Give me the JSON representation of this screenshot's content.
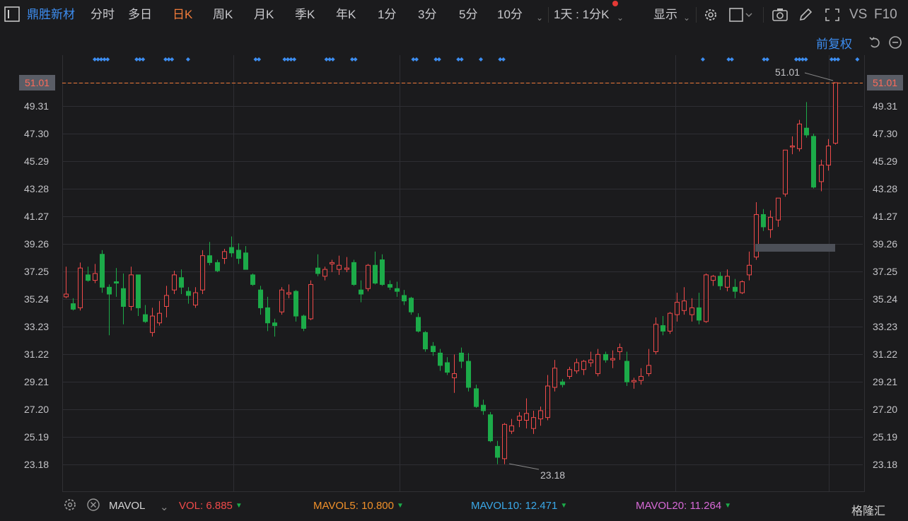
{
  "toolbar": {
    "stock_name": "鼎胜新材",
    "tabs": [
      "分时",
      "多日",
      "日K",
      "周K",
      "月K",
      "季K",
      "年K",
      "1分",
      "3分",
      "5分",
      "10分"
    ],
    "active_tab": "日K",
    "period_select": "1天 : 1分K",
    "display_label": "显示",
    "vs_label": "VS",
    "f10_label": "F10"
  },
  "chart_controls": {
    "adjust_label": "前复权"
  },
  "price_axis": {
    "ticks": [
      "51.01",
      "49.31",
      "47.30",
      "45.29",
      "43.28",
      "41.27",
      "39.26",
      "37.25",
      "35.24",
      "33.23",
      "31.22",
      "29.21",
      "27.20",
      "25.19",
      "23.18"
    ],
    "current_price": "51.01",
    "high_label": "51.01",
    "low_label": "23.18"
  },
  "colors": {
    "up": "#f04a4a",
    "down": "#1cab49",
    "marker": "#3d8df0",
    "guide": "#f07b3a",
    "grid": "#2e2e33"
  },
  "chart_data": {
    "type": "candlestick",
    "ylim": [
      22.4,
      52.3
    ],
    "candles": [
      {
        "o": 35.4,
        "h": 37.6,
        "l": 35.3,
        "c": 35.6
      },
      {
        "o": 34.9,
        "h": 35.3,
        "l": 34.4,
        "c": 34.5
      },
      {
        "o": 34.6,
        "h": 37.9,
        "l": 34.4,
        "c": 37.5
      },
      {
        "o": 37.0,
        "h": 37.6,
        "l": 36.5,
        "c": 36.6
      },
      {
        "o": 36.6,
        "h": 37.8,
        "l": 36.4,
        "c": 37.1
      },
      {
        "o": 38.5,
        "h": 38.8,
        "l": 35.7,
        "c": 36.1
      },
      {
        "o": 36.1,
        "h": 36.3,
        "l": 32.6,
        "c": 35.6
      },
      {
        "o": 36.5,
        "h": 37.5,
        "l": 35.4,
        "c": 36.4
      },
      {
        "o": 36.0,
        "h": 37.1,
        "l": 33.4,
        "c": 34.7
      },
      {
        "o": 34.7,
        "h": 37.6,
        "l": 34.4,
        "c": 37.0
      },
      {
        "o": 37.0,
        "h": 37.0,
        "l": 34.0,
        "c": 34.6
      },
      {
        "o": 34.1,
        "h": 34.8,
        "l": 33.5,
        "c": 33.6
      },
      {
        "o": 32.8,
        "h": 34.6,
        "l": 32.5,
        "c": 34.0
      },
      {
        "o": 33.5,
        "h": 35.1,
        "l": 33.3,
        "c": 34.2
      },
      {
        "o": 34.7,
        "h": 36.2,
        "l": 33.9,
        "c": 35.5
      },
      {
        "o": 35.9,
        "h": 37.3,
        "l": 35.6,
        "c": 37.0
      },
      {
        "o": 36.8,
        "h": 37.4,
        "l": 35.6,
        "c": 36.1
      },
      {
        "o": 35.8,
        "h": 36.1,
        "l": 34.9,
        "c": 35.5
      },
      {
        "o": 34.8,
        "h": 36.1,
        "l": 34.6,
        "c": 35.7
      },
      {
        "o": 35.9,
        "h": 38.8,
        "l": 35.6,
        "c": 38.4
      },
      {
        "o": 38.4,
        "h": 39.4,
        "l": 37.7,
        "c": 37.9
      },
      {
        "o": 37.9,
        "h": 38.1,
        "l": 37.2,
        "c": 37.3
      },
      {
        "o": 38.2,
        "h": 38.9,
        "l": 37.8,
        "c": 38.7
      },
      {
        "o": 39.0,
        "h": 39.8,
        "l": 38.3,
        "c": 38.6
      },
      {
        "o": 38.8,
        "h": 39.3,
        "l": 37.8,
        "c": 38.2
      },
      {
        "o": 38.6,
        "h": 39.1,
        "l": 37.4,
        "c": 37.4
      },
      {
        "o": 37.0,
        "h": 37.1,
        "l": 36.2,
        "c": 36.3
      },
      {
        "o": 35.9,
        "h": 36.2,
        "l": 34.1,
        "c": 34.6
      },
      {
        "o": 34.6,
        "h": 35.4,
        "l": 32.9,
        "c": 33.5
      },
      {
        "o": 33.5,
        "h": 33.8,
        "l": 32.5,
        "c": 33.3
      },
      {
        "o": 34.3,
        "h": 36.1,
        "l": 34.1,
        "c": 35.9
      },
      {
        "o": 35.6,
        "h": 36.3,
        "l": 35.3,
        "c": 35.7
      },
      {
        "o": 35.8,
        "h": 35.9,
        "l": 33.6,
        "c": 34.0
      },
      {
        "o": 34.0,
        "h": 34.1,
        "l": 32.9,
        "c": 33.1
      },
      {
        "o": 33.8,
        "h": 36.6,
        "l": 33.7,
        "c": 36.3
      },
      {
        "o": 37.5,
        "h": 38.5,
        "l": 36.9,
        "c": 37.1
      },
      {
        "o": 36.9,
        "h": 37.6,
        "l": 36.6,
        "c": 37.4
      },
      {
        "o": 37.8,
        "h": 38.1,
        "l": 37.2,
        "c": 37.9
      },
      {
        "o": 37.4,
        "h": 38.4,
        "l": 37.0,
        "c": 37.7
      },
      {
        "o": 37.4,
        "h": 38.3,
        "l": 37.2,
        "c": 37.5
      },
      {
        "o": 37.9,
        "h": 38.1,
        "l": 36.2,
        "c": 36.3
      },
      {
        "o": 35.9,
        "h": 36.6,
        "l": 35.0,
        "c": 35.6
      },
      {
        "o": 36.0,
        "h": 37.8,
        "l": 35.8,
        "c": 37.7
      },
      {
        "o": 37.7,
        "h": 38.7,
        "l": 36.3,
        "c": 36.4
      },
      {
        "o": 38.1,
        "h": 38.5,
        "l": 36.2,
        "c": 36.3
      },
      {
        "o": 36.3,
        "h": 36.6,
        "l": 35.9,
        "c": 36.1
      },
      {
        "o": 36.0,
        "h": 36.5,
        "l": 35.4,
        "c": 35.8
      },
      {
        "o": 35.5,
        "h": 35.9,
        "l": 34.8,
        "c": 35.1
      },
      {
        "o": 35.3,
        "h": 35.4,
        "l": 34.1,
        "c": 34.3
      },
      {
        "o": 33.9,
        "h": 34.2,
        "l": 32.8,
        "c": 32.9
      },
      {
        "o": 32.8,
        "h": 32.9,
        "l": 31.4,
        "c": 31.6
      },
      {
        "o": 31.8,
        "h": 32.1,
        "l": 31.1,
        "c": 31.4
      },
      {
        "o": 31.3,
        "h": 31.6,
        "l": 30.0,
        "c": 30.4
      },
      {
        "o": 30.6,
        "h": 31.0,
        "l": 29.7,
        "c": 29.9
      },
      {
        "o": 29.5,
        "h": 31.2,
        "l": 28.4,
        "c": 29.8
      },
      {
        "o": 31.3,
        "h": 31.7,
        "l": 30.2,
        "c": 30.7
      },
      {
        "o": 30.7,
        "h": 31.3,
        "l": 28.5,
        "c": 28.8
      },
      {
        "o": 28.7,
        "h": 29.0,
        "l": 27.3,
        "c": 27.4
      },
      {
        "o": 27.5,
        "h": 27.9,
        "l": 26.8,
        "c": 27.1
      },
      {
        "o": 26.8,
        "h": 27.0,
        "l": 24.8,
        "c": 24.9
      },
      {
        "o": 24.5,
        "h": 24.9,
        "l": 23.2,
        "c": 23.7
      },
      {
        "o": 23.6,
        "h": 26.2,
        "l": 23.2,
        "c": 26.1
      },
      {
        "o": 25.6,
        "h": 26.5,
        "l": 25.4,
        "c": 26.0
      },
      {
        "o": 26.4,
        "h": 27.0,
        "l": 25.9,
        "c": 26.7
      },
      {
        "o": 26.4,
        "h": 28.0,
        "l": 25.8,
        "c": 26.9
      },
      {
        "o": 25.8,
        "h": 27.1,
        "l": 25.4,
        "c": 26.6
      },
      {
        "o": 26.5,
        "h": 27.4,
        "l": 26.0,
        "c": 27.1
      },
      {
        "o": 26.6,
        "h": 29.7,
        "l": 26.4,
        "c": 28.9
      },
      {
        "o": 28.8,
        "h": 30.8,
        "l": 28.5,
        "c": 30.2
      },
      {
        "o": 29.2,
        "h": 29.4,
        "l": 28.8,
        "c": 29.0
      },
      {
        "o": 29.6,
        "h": 30.3,
        "l": 29.4,
        "c": 30.1
      },
      {
        "o": 30.0,
        "h": 30.9,
        "l": 29.8,
        "c": 30.6
      },
      {
        "o": 30.1,
        "h": 30.8,
        "l": 29.7,
        "c": 30.7
      },
      {
        "o": 30.6,
        "h": 31.4,
        "l": 30.3,
        "c": 30.8
      },
      {
        "o": 29.8,
        "h": 31.6,
        "l": 29.6,
        "c": 31.2
      },
      {
        "o": 31.2,
        "h": 31.4,
        "l": 30.6,
        "c": 30.8
      },
      {
        "o": 30.8,
        "h": 31.5,
        "l": 30.2,
        "c": 30.9
      },
      {
        "o": 31.4,
        "h": 32.0,
        "l": 30.8,
        "c": 31.7
      },
      {
        "o": 30.7,
        "h": 31.4,
        "l": 28.9,
        "c": 29.2
      },
      {
        "o": 29.2,
        "h": 29.5,
        "l": 28.7,
        "c": 29.3
      },
      {
        "o": 29.3,
        "h": 30.2,
        "l": 29.0,
        "c": 29.6
      },
      {
        "o": 29.8,
        "h": 31.6,
        "l": 29.6,
        "c": 30.4
      },
      {
        "o": 31.4,
        "h": 33.9,
        "l": 31.2,
        "c": 33.4
      },
      {
        "o": 33.3,
        "h": 34.0,
        "l": 32.6,
        "c": 32.9
      },
      {
        "o": 32.9,
        "h": 34.3,
        "l": 32.7,
        "c": 34.2
      },
      {
        "o": 34.1,
        "h": 35.7,
        "l": 33.6,
        "c": 35.0
      },
      {
        "o": 34.4,
        "h": 36.1,
        "l": 34.1,
        "c": 35.1
      },
      {
        "o": 34.1,
        "h": 35.3,
        "l": 33.6,
        "c": 34.6
      },
      {
        "o": 34.6,
        "h": 35.7,
        "l": 33.4,
        "c": 33.7
      },
      {
        "o": 33.6,
        "h": 37.1,
        "l": 33.5,
        "c": 37.0
      },
      {
        "o": 36.6,
        "h": 37.0,
        "l": 36.2,
        "c": 36.9
      },
      {
        "o": 36.9,
        "h": 37.2,
        "l": 35.9,
        "c": 36.2
      },
      {
        "o": 36.1,
        "h": 37.4,
        "l": 35.8,
        "c": 36.9
      },
      {
        "o": 36.1,
        "h": 36.7,
        "l": 35.3,
        "c": 35.8
      },
      {
        "o": 35.7,
        "h": 36.6,
        "l": 35.6,
        "c": 36.5
      },
      {
        "o": 37.0,
        "h": 38.7,
        "l": 36.6,
        "c": 37.7
      },
      {
        "o": 38.3,
        "h": 42.3,
        "l": 38.1,
        "c": 41.4
      },
      {
        "o": 41.4,
        "h": 41.8,
        "l": 40.2,
        "c": 40.5
      },
      {
        "o": 40.3,
        "h": 41.7,
        "l": 39.7,
        "c": 41.2
      },
      {
        "o": 41.0,
        "h": 42.6,
        "l": 40.5,
        "c": 42.6
      },
      {
        "o": 42.9,
        "h": 46.1,
        "l": 42.7,
        "c": 46.1
      },
      {
        "o": 46.4,
        "h": 47.1,
        "l": 45.8,
        "c": 46.4
      },
      {
        "o": 46.2,
        "h": 48.3,
        "l": 46.0,
        "c": 48.0
      },
      {
        "o": 47.7,
        "h": 49.6,
        "l": 47.0,
        "c": 47.2
      },
      {
        "o": 47.1,
        "h": 47.3,
        "l": 43.3,
        "c": 43.4
      },
      {
        "o": 43.8,
        "h": 45.4,
        "l": 43.1,
        "c": 45.0
      },
      {
        "o": 45.0,
        "h": 46.9,
        "l": 44.6,
        "c": 46.4
      },
      {
        "o": 46.6,
        "h": 51.01,
        "l": 46.5,
        "c": 51.01
      }
    ],
    "ytick_values": [
      51.01,
      49.31,
      47.3,
      45.29,
      43.28,
      41.27,
      39.26,
      37.25,
      35.24,
      33.23,
      31.22,
      29.21,
      27.2,
      25.19,
      23.18
    ],
    "marker_groups": [
      [
        5,
        0
      ],
      [
        3,
        13
      ],
      [
        3,
        22
      ],
      [
        1,
        29
      ],
      [
        2,
        50
      ],
      [
        4,
        59
      ],
      [
        3,
        72
      ],
      [
        2,
        80
      ],
      [
        2,
        99
      ],
      [
        2,
        106
      ],
      [
        2,
        113
      ],
      [
        1,
        120
      ],
      [
        2,
        126
      ],
      [
        1,
        189
      ],
      [
        2,
        197
      ],
      [
        2,
        208
      ],
      [
        4,
        218
      ],
      [
        3,
        229
      ],
      [
        1,
        237
      ]
    ],
    "volume_panel": {
      "indicator": "MAVOL",
      "series": [
        {
          "name": "VOL",
          "value": "6.885",
          "color": "#f04a4a"
        },
        {
          "name": "MAVOL5",
          "value": "10.800",
          "color": "#f0902a"
        },
        {
          "name": "MAVOL10",
          "value": "12.471",
          "color": "#3aa8e8"
        },
        {
          "name": "MAVOL20",
          "value": "11.264",
          "color": "#d86ad8"
        }
      ]
    }
  },
  "footer": {
    "watermark": "格隆汇"
  }
}
